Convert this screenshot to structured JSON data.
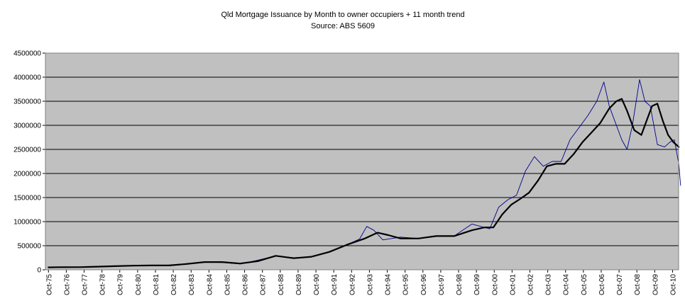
{
  "chart_data": {
    "type": "line",
    "title": "Qld Mortgage Issuance by Month to owner occupiers + 11 month trend",
    "subtitle": "Source: ABS 5609",
    "xlabel": "",
    "ylabel": "",
    "ylim": [
      0,
      4500000
    ],
    "yticks": [
      0,
      500000,
      1000000,
      1500000,
      2000000,
      2500000,
      3000000,
      3500000,
      4000000,
      4500000
    ],
    "ytick_labels": [
      "0",
      "500000",
      "1000000",
      "1500000",
      "2000000",
      "2500000",
      "3000000",
      "3500000",
      "4000000",
      "4500000"
    ],
    "xtick_labels": [
      "Oct-75",
      "Oct-76",
      "Oct-77",
      "Oct-78",
      "Oct-79",
      "Oct-80",
      "Oct-81",
      "Oct-82",
      "Oct-83",
      "Oct-84",
      "Oct-85",
      "Oct-86",
      "Oct-87",
      "Oct-88",
      "Oct-89",
      "Oct-90",
      "Oct-91",
      "Oct-92",
      "Oct-93",
      "Oct-94",
      "Oct-95",
      "Oct-96",
      "Oct-97",
      "Oct-98",
      "Oct-99",
      "Oct-00",
      "Oct-01",
      "Oct-02",
      "Oct-03",
      "Oct-04",
      "Oct-05",
      "Oct-06",
      "Oct-07",
      "Oct-08",
      "Oct-09",
      "Oct-10"
    ],
    "grid": true,
    "plot_background": "#c0c0c0",
    "series": [
      {
        "color": "#00008b",
        "style": "thin",
        "x": [
          1975.75,
          1976.5,
          1977.5,
          1978.5,
          1979.5,
          1980.5,
          1981.5,
          1982.5,
          1983.5,
          1984.5,
          1985.5,
          1986.5,
          1987.5,
          1988.5,
          1989.5,
          1990.5,
          1991.5,
          1992.5,
          1993.2,
          1993.6,
          1994.0,
          1994.5,
          1995.5,
          1996.5,
          1997.5,
          1998.5,
          1999.5,
          2000.5,
          2001.0,
          2001.5,
          2002.0,
          2002.5,
          2003.0,
          2003.5,
          2004.0,
          2004.5,
          2005.0,
          2005.5,
          2006.0,
          2006.5,
          2006.9,
          2007.2,
          2007.5,
          2007.9,
          2008.2,
          2008.5,
          2008.9,
          2009.2,
          2009.5,
          2009.9,
          2010.3,
          2010.6,
          2010.85,
          2011.1,
          2011.2
        ],
        "values": [
          60000,
          45000,
          50000,
          70000,
          75000,
          85000,
          90000,
          80000,
          130000,
          160000,
          150000,
          120000,
          200000,
          290000,
          250000,
          270000,
          380000,
          520000,
          640000,
          900000,
          820000,
          620000,
          680000,
          650000,
          700000,
          700000,
          950000,
          850000,
          1300000,
          1450000,
          1550000,
          2050000,
          2350000,
          2150000,
          2250000,
          2250000,
          2700000,
          2950000,
          3200000,
          3500000,
          3900000,
          3400000,
          3100000,
          2700000,
          2500000,
          3000000,
          3950000,
          3500000,
          3400000,
          2600000,
          2550000,
          2650000,
          2700000,
          2200000,
          1750000
        ]
      },
      {
        "color": "#000000",
        "style": "thick",
        "x": [
          1975.75,
          1976.5,
          1977.5,
          1978.5,
          1979.5,
          1980.5,
          1981.5,
          1982.5,
          1983.5,
          1984.5,
          1985.5,
          1986.5,
          1987.5,
          1988.5,
          1989.5,
          1990.5,
          1991.5,
          1992.5,
          1993.5,
          1994.2,
          1994.8,
          1995.5,
          1996.5,
          1997.5,
          1998.5,
          1999.5,
          2000.2,
          2000.7,
          2001.2,
          2001.7,
          2002.2,
          2002.7,
          2003.2,
          2003.7,
          2004.2,
          2004.7,
          2005.2,
          2005.7,
          2006.2,
          2006.7,
          2007.2,
          2007.6,
          2007.9,
          2008.2,
          2008.6,
          2009.0,
          2009.3,
          2009.6,
          2009.9,
          2010.2,
          2010.5,
          2010.8,
          2011.1
        ],
        "values": [
          50000,
          55000,
          55000,
          65000,
          75000,
          85000,
          90000,
          90000,
          120000,
          160000,
          160000,
          130000,
          180000,
          290000,
          240000,
          270000,
          370000,
          520000,
          650000,
          770000,
          720000,
          650000,
          650000,
          700000,
          700000,
          820000,
          880000,
          880000,
          1150000,
          1350000,
          1470000,
          1600000,
          1850000,
          2150000,
          2200000,
          2200000,
          2400000,
          2650000,
          2850000,
          3050000,
          3350000,
          3500000,
          3550000,
          3300000,
          2900000,
          2800000,
          3100000,
          3400000,
          3450000,
          3100000,
          2800000,
          2650000,
          2550000
        ]
      }
    ]
  }
}
